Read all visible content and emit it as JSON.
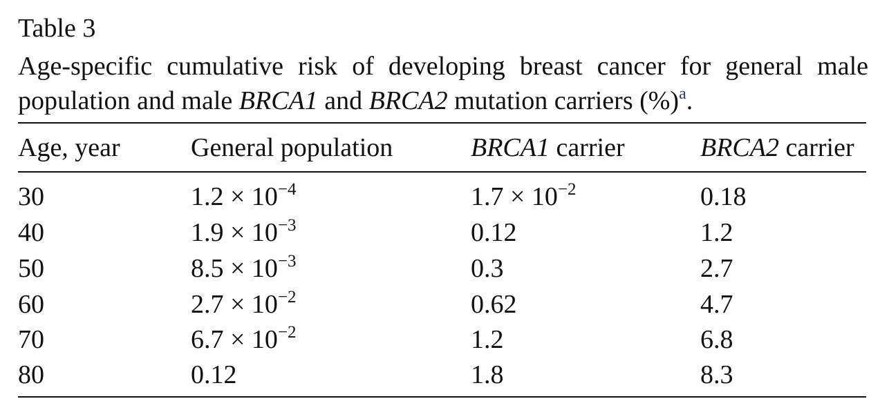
{
  "table": {
    "label": "Table 3",
    "caption_line1": "Age-specific cumulative risk of developing breast cancer for general male",
    "caption_line2_a": "population and male ",
    "caption_brca1": "BRCA1",
    "caption_and": " and ",
    "caption_brca2": "BRCA2",
    "caption_line2_b": " mutation carriers (%)",
    "caption_footnote": "a",
    "caption_end": ".",
    "headers": {
      "age": "Age, year",
      "general": "General population",
      "brca1_gene": "BRCA1",
      "brca1_rest": " carrier",
      "brca2_gene": "BRCA2",
      "brca2_rest": " carrier"
    },
    "rows": [
      {
        "age": "30",
        "general_base": "1.2 × 10",
        "general_exp": "−4",
        "brca1_base": "1.7 × 10",
        "brca1_exp": "−2",
        "brca2": "0.18"
      },
      {
        "age": "40",
        "general_base": "1.9 × 10",
        "general_exp": "−3",
        "brca1_base": "0.12",
        "brca1_exp": "",
        "brca2": "1.2"
      },
      {
        "age": "50",
        "general_base": "8.5 × 10",
        "general_exp": "−3",
        "brca1_base": "0.3",
        "brca1_exp": "",
        "brca2": "2.7"
      },
      {
        "age": "60",
        "general_base": "2.7 × 10",
        "general_exp": "−2",
        "brca1_base": "0.62",
        "brca1_exp": "",
        "brca2": "4.7"
      },
      {
        "age": "70",
        "general_base": "6.7 × 10",
        "general_exp": "−2",
        "brca1_base": "1.2",
        "brca1_exp": "",
        "brca2": "6.8"
      },
      {
        "age": "80",
        "general_base": "0.12",
        "general_exp": "",
        "brca1_base": "1.8",
        "brca1_exp": "",
        "brca2": "8.3"
      }
    ]
  }
}
